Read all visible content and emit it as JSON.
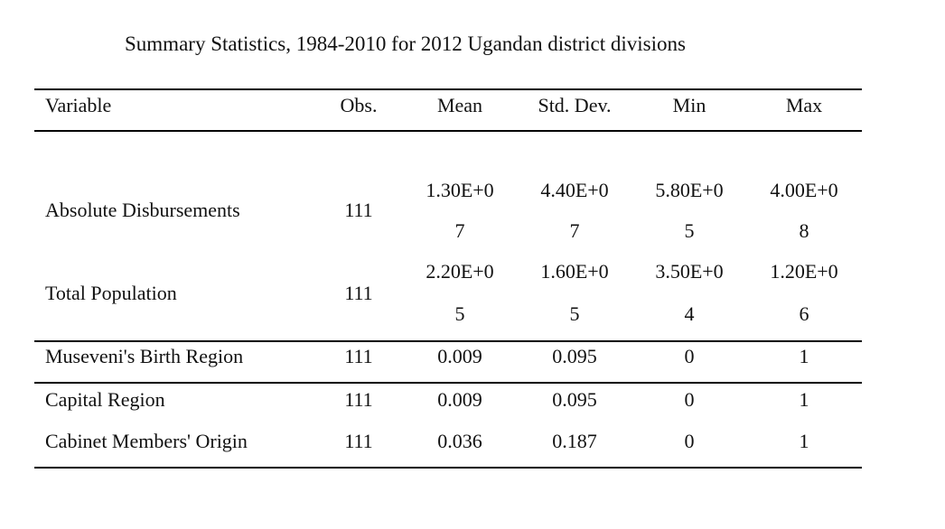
{
  "title": "Summary Statistics, 1984-2010 for 2012 Ugandan district divisions",
  "headers": {
    "variable": "Variable",
    "obs": "Obs.",
    "mean": "Mean",
    "std": "Std. Dev.",
    "min": "Min",
    "max": "Max"
  },
  "rows": [
    {
      "variable": "Absolute Disbursements",
      "obs": "111",
      "mean": [
        "1.30E+0",
        "7"
      ],
      "std": [
        "4.40E+0",
        "7"
      ],
      "min": [
        "5.80E+0",
        "5"
      ],
      "max": [
        "4.00E+0",
        "8"
      ]
    },
    {
      "variable": "Total Population",
      "obs": "111",
      "mean": [
        "2.20E+0",
        "5"
      ],
      "std": [
        "1.60E+0",
        "5"
      ],
      "min": [
        "3.50E+0",
        "4"
      ],
      "max": [
        "1.20E+0",
        "6"
      ]
    },
    {
      "variable": "Museveni's Birth Region",
      "obs": "111",
      "mean": "0.009",
      "std": "0.095",
      "min": "0",
      "max": "1"
    },
    {
      "variable": "Capital Region",
      "obs": "111",
      "mean": "0.009",
      "std": "0.095",
      "min": "0",
      "max": "1"
    },
    {
      "variable": "Cabinet Members' Origin",
      "obs": "111",
      "mean": "0.036",
      "std": "0.187",
      "min": "0",
      "max": "1"
    }
  ]
}
